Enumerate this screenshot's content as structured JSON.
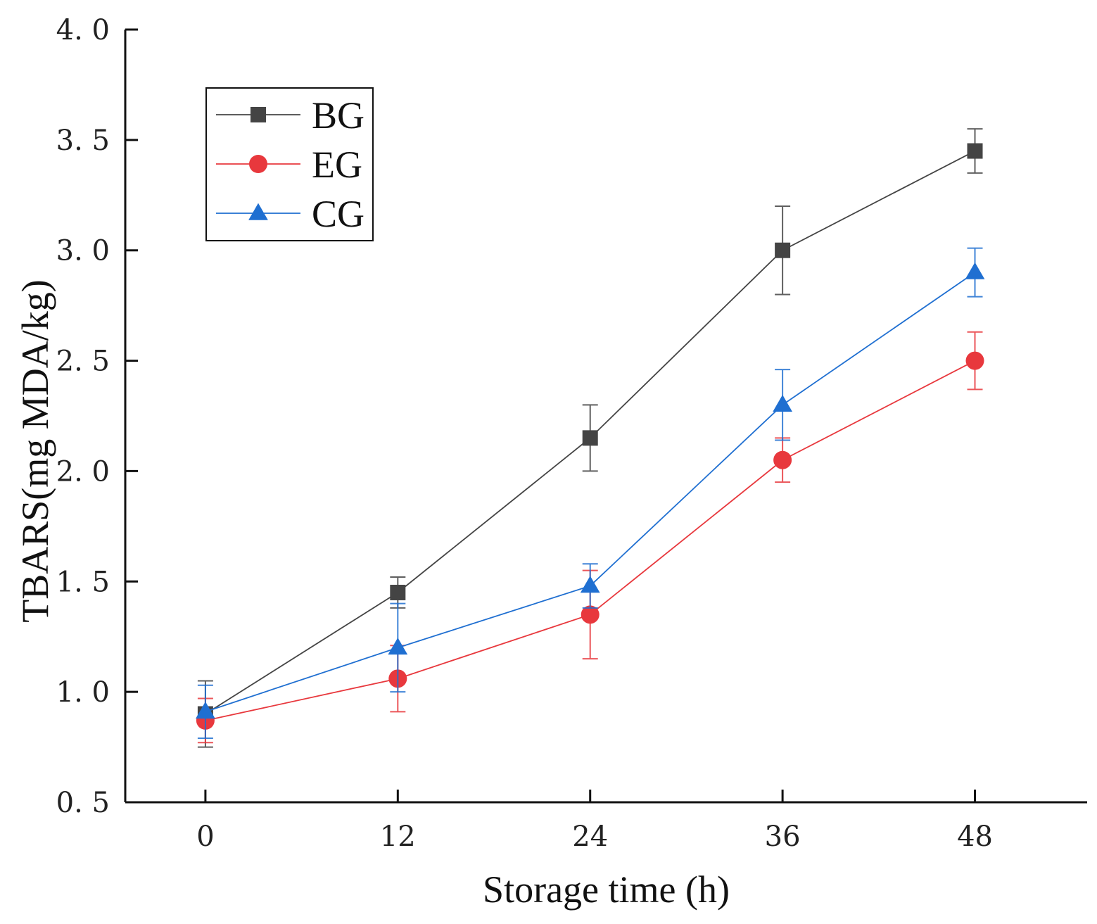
{
  "chart_data": {
    "type": "line",
    "title": "",
    "xlabel": "Storage time (h)",
    "ylabel": "TBARS(mg MDA/kg)",
    "x": [
      0,
      12,
      24,
      36,
      48
    ],
    "x_tick_labels": [
      "0",
      "12",
      "24",
      "36",
      "48"
    ],
    "xlim": [
      -5,
      55
    ],
    "ylim": [
      0.5,
      4.0
    ],
    "y_ticks": [
      0.5,
      1.0,
      1.5,
      2.0,
      2.5,
      3.0,
      3.5,
      4.0
    ],
    "y_tick_labels": [
      "0. 5",
      "1. 0",
      "1. 5",
      "2. 0",
      "2. 5",
      "3. 0",
      "3. 5",
      "4. 0"
    ],
    "grid": false,
    "legend_position": "top-left",
    "series": [
      {
        "name": "BG",
        "color": "#444444",
        "marker": "square",
        "values": [
          0.9,
          1.45,
          2.15,
          3.0,
          3.45
        ],
        "errors": [
          0.15,
          0.07,
          0.15,
          0.2,
          0.1
        ]
      },
      {
        "name": "EG",
        "color": "#e8383d",
        "marker": "circle",
        "values": [
          0.87,
          1.06,
          1.35,
          2.05,
          2.5
        ],
        "errors": [
          0.1,
          0.15,
          0.2,
          0.1,
          0.13
        ]
      },
      {
        "name": "CG",
        "color": "#1f6fd1",
        "marker": "triangle",
        "values": [
          0.91,
          1.2,
          1.48,
          2.3,
          2.9
        ],
        "errors": [
          0.12,
          0.2,
          0.1,
          0.16,
          0.11
        ]
      }
    ]
  }
}
